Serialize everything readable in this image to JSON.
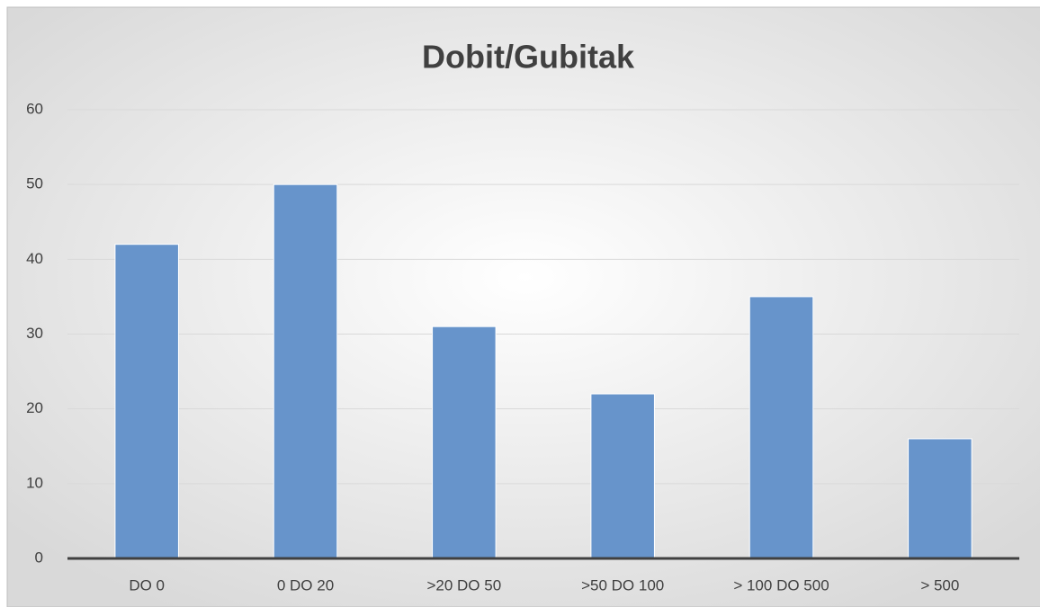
{
  "chart_data": {
    "type": "bar",
    "title": "Dobit/Gubitak",
    "categories": [
      "DO 0",
      "0 DO 20",
      ">20 DO 50",
      ">50 DO 100",
      "> 100 DO 500",
      "> 500"
    ],
    "values": [
      42,
      50,
      31,
      22,
      35,
      16
    ],
    "color": "#6794cb",
    "ylim": [
      0,
      60
    ],
    "yticks": [
      0,
      10,
      20,
      30,
      40,
      50,
      60
    ],
    "grid": true
  }
}
